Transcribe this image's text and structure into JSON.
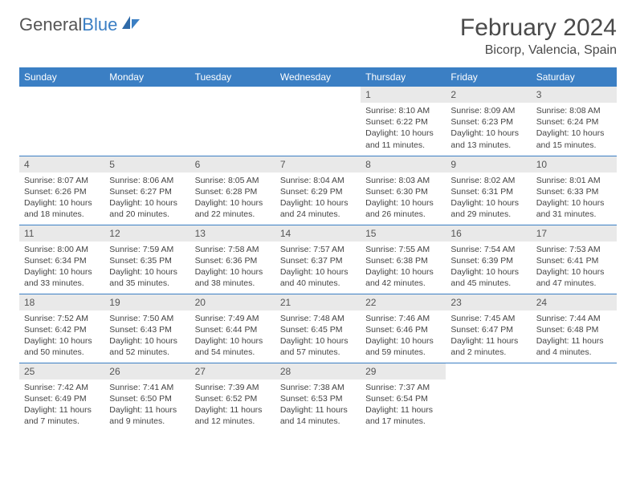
{
  "logo": {
    "part1": "General",
    "part2": "Blue"
  },
  "title": "February 2024",
  "location": "Bicorp, Valencia, Spain",
  "day_headers": [
    "Sunday",
    "Monday",
    "Tuesday",
    "Wednesday",
    "Thursday",
    "Friday",
    "Saturday"
  ],
  "colors": {
    "header_bg": "#3b7fc4",
    "header_text": "#ffffff",
    "daynum_bg": "#e9e9e9",
    "border": "#3b7fc4"
  },
  "weeks": [
    [
      null,
      null,
      null,
      null,
      {
        "n": "1",
        "sunrise": "Sunrise: 8:10 AM",
        "sunset": "Sunset: 6:22 PM",
        "daylight": "Daylight: 10 hours and 11 minutes."
      },
      {
        "n": "2",
        "sunrise": "Sunrise: 8:09 AM",
        "sunset": "Sunset: 6:23 PM",
        "daylight": "Daylight: 10 hours and 13 minutes."
      },
      {
        "n": "3",
        "sunrise": "Sunrise: 8:08 AM",
        "sunset": "Sunset: 6:24 PM",
        "daylight": "Daylight: 10 hours and 15 minutes."
      }
    ],
    [
      {
        "n": "4",
        "sunrise": "Sunrise: 8:07 AM",
        "sunset": "Sunset: 6:26 PM",
        "daylight": "Daylight: 10 hours and 18 minutes."
      },
      {
        "n": "5",
        "sunrise": "Sunrise: 8:06 AM",
        "sunset": "Sunset: 6:27 PM",
        "daylight": "Daylight: 10 hours and 20 minutes."
      },
      {
        "n": "6",
        "sunrise": "Sunrise: 8:05 AM",
        "sunset": "Sunset: 6:28 PM",
        "daylight": "Daylight: 10 hours and 22 minutes."
      },
      {
        "n": "7",
        "sunrise": "Sunrise: 8:04 AM",
        "sunset": "Sunset: 6:29 PM",
        "daylight": "Daylight: 10 hours and 24 minutes."
      },
      {
        "n": "8",
        "sunrise": "Sunrise: 8:03 AM",
        "sunset": "Sunset: 6:30 PM",
        "daylight": "Daylight: 10 hours and 26 minutes."
      },
      {
        "n": "9",
        "sunrise": "Sunrise: 8:02 AM",
        "sunset": "Sunset: 6:31 PM",
        "daylight": "Daylight: 10 hours and 29 minutes."
      },
      {
        "n": "10",
        "sunrise": "Sunrise: 8:01 AM",
        "sunset": "Sunset: 6:33 PM",
        "daylight": "Daylight: 10 hours and 31 minutes."
      }
    ],
    [
      {
        "n": "11",
        "sunrise": "Sunrise: 8:00 AM",
        "sunset": "Sunset: 6:34 PM",
        "daylight": "Daylight: 10 hours and 33 minutes."
      },
      {
        "n": "12",
        "sunrise": "Sunrise: 7:59 AM",
        "sunset": "Sunset: 6:35 PM",
        "daylight": "Daylight: 10 hours and 35 minutes."
      },
      {
        "n": "13",
        "sunrise": "Sunrise: 7:58 AM",
        "sunset": "Sunset: 6:36 PM",
        "daylight": "Daylight: 10 hours and 38 minutes."
      },
      {
        "n": "14",
        "sunrise": "Sunrise: 7:57 AM",
        "sunset": "Sunset: 6:37 PM",
        "daylight": "Daylight: 10 hours and 40 minutes."
      },
      {
        "n": "15",
        "sunrise": "Sunrise: 7:55 AM",
        "sunset": "Sunset: 6:38 PM",
        "daylight": "Daylight: 10 hours and 42 minutes."
      },
      {
        "n": "16",
        "sunrise": "Sunrise: 7:54 AM",
        "sunset": "Sunset: 6:39 PM",
        "daylight": "Daylight: 10 hours and 45 minutes."
      },
      {
        "n": "17",
        "sunrise": "Sunrise: 7:53 AM",
        "sunset": "Sunset: 6:41 PM",
        "daylight": "Daylight: 10 hours and 47 minutes."
      }
    ],
    [
      {
        "n": "18",
        "sunrise": "Sunrise: 7:52 AM",
        "sunset": "Sunset: 6:42 PM",
        "daylight": "Daylight: 10 hours and 50 minutes."
      },
      {
        "n": "19",
        "sunrise": "Sunrise: 7:50 AM",
        "sunset": "Sunset: 6:43 PM",
        "daylight": "Daylight: 10 hours and 52 minutes."
      },
      {
        "n": "20",
        "sunrise": "Sunrise: 7:49 AM",
        "sunset": "Sunset: 6:44 PM",
        "daylight": "Daylight: 10 hours and 54 minutes."
      },
      {
        "n": "21",
        "sunrise": "Sunrise: 7:48 AM",
        "sunset": "Sunset: 6:45 PM",
        "daylight": "Daylight: 10 hours and 57 minutes."
      },
      {
        "n": "22",
        "sunrise": "Sunrise: 7:46 AM",
        "sunset": "Sunset: 6:46 PM",
        "daylight": "Daylight: 10 hours and 59 minutes."
      },
      {
        "n": "23",
        "sunrise": "Sunrise: 7:45 AM",
        "sunset": "Sunset: 6:47 PM",
        "daylight": "Daylight: 11 hours and 2 minutes."
      },
      {
        "n": "24",
        "sunrise": "Sunrise: 7:44 AM",
        "sunset": "Sunset: 6:48 PM",
        "daylight": "Daylight: 11 hours and 4 minutes."
      }
    ],
    [
      {
        "n": "25",
        "sunrise": "Sunrise: 7:42 AM",
        "sunset": "Sunset: 6:49 PM",
        "daylight": "Daylight: 11 hours and 7 minutes."
      },
      {
        "n": "26",
        "sunrise": "Sunrise: 7:41 AM",
        "sunset": "Sunset: 6:50 PM",
        "daylight": "Daylight: 11 hours and 9 minutes."
      },
      {
        "n": "27",
        "sunrise": "Sunrise: 7:39 AM",
        "sunset": "Sunset: 6:52 PM",
        "daylight": "Daylight: 11 hours and 12 minutes."
      },
      {
        "n": "28",
        "sunrise": "Sunrise: 7:38 AM",
        "sunset": "Sunset: 6:53 PM",
        "daylight": "Daylight: 11 hours and 14 minutes."
      },
      {
        "n": "29",
        "sunrise": "Sunrise: 7:37 AM",
        "sunset": "Sunset: 6:54 PM",
        "daylight": "Daylight: 11 hours and 17 minutes."
      },
      null,
      null
    ]
  ]
}
